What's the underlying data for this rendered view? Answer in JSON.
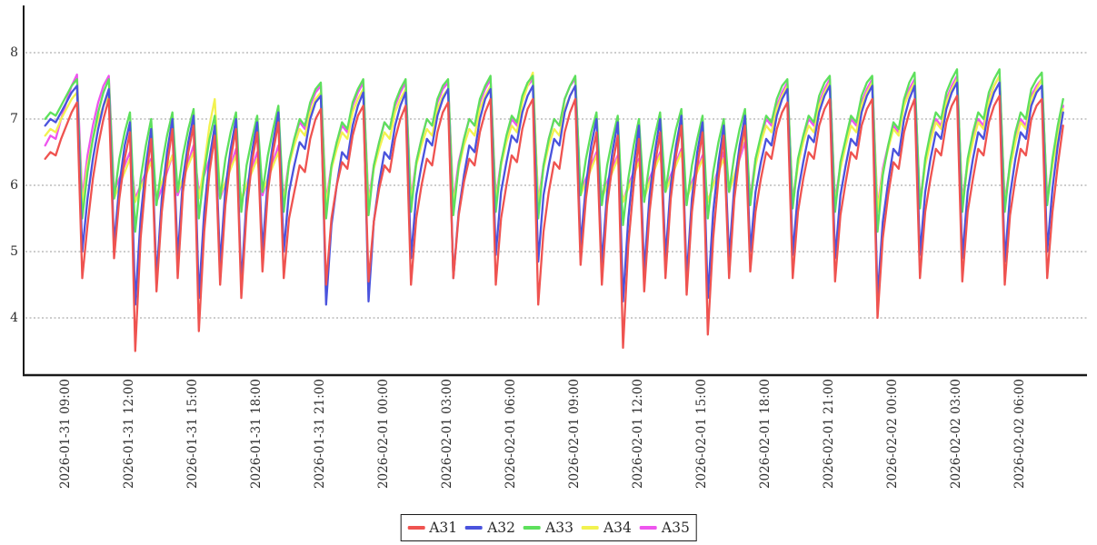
{
  "chart_data": {
    "type": "line",
    "title": "",
    "xlabel": "",
    "ylabel": "",
    "x_start": "2026-01-31 08:00",
    "step_minutes": 15,
    "x_tick_labels": [
      "2026-01-31 09:00",
      "2026-01-31 12:00",
      "2026-01-31 15:00",
      "2026-01-31 18:00",
      "2026-01-31 21:00",
      "2026-02-01 00:00",
      "2026-02-01 03:00",
      "2026-02-01 06:00",
      "2026-02-01 09:00",
      "2026-02-01 12:00",
      "2026-02-01 15:00",
      "2026-02-01 18:00",
      "2026-02-01 21:00",
      "2026-02-02 00:00",
      "2026-02-02 03:00",
      "2026-02-02 06:00"
    ],
    "y_ticks": [
      8,
      7,
      6,
      5,
      4
    ],
    "ylim": [
      3.2,
      8.7
    ],
    "grid": "horizontal-dashed",
    "grid_color": "#9a9a9a",
    "axis_color": "#1a1a1a",
    "legend_position": "bottom-center",
    "draw_order": [
      "A35",
      "A34",
      "A33",
      "A32",
      "A31"
    ],
    "series": [
      {
        "name": "A31",
        "color": "#ef5350",
        "values": [
          6.4,
          6.5,
          6.45,
          6.7,
          6.9,
          7.1,
          7.25,
          4.6,
          5.4,
          6.1,
          6.6,
          7.0,
          7.3,
          4.9,
          5.8,
          6.4,
          6.8,
          3.5,
          5.2,
          6.1,
          6.7,
          4.4,
          5.6,
          6.3,
          6.85,
          4.6,
          5.9,
          6.5,
          6.9,
          3.8,
          5.3,
          6.2,
          6.75,
          4.5,
          5.7,
          6.4,
          6.85,
          4.3,
          5.6,
          6.35,
          6.8,
          4.7,
          5.9,
          6.5,
          6.95,
          4.6,
          5.5,
          5.9,
          6.3,
          6.2,
          6.7,
          7.0,
          7.15,
          4.5,
          5.5,
          6.0,
          6.35,
          6.25,
          6.75,
          7.05,
          7.2,
          4.55,
          5.45,
          5.95,
          6.3,
          6.2,
          6.7,
          7.0,
          7.2,
          4.5,
          5.5,
          6.0,
          6.4,
          6.3,
          6.8,
          7.1,
          7.25,
          4.6,
          5.55,
          6.05,
          6.4,
          6.3,
          6.8,
          7.1,
          7.3,
          4.5,
          5.5,
          6.0,
          6.45,
          6.35,
          6.85,
          7.15,
          7.3,
          4.2,
          5.3,
          5.9,
          6.35,
          6.25,
          6.8,
          7.1,
          7.3,
          4.8,
          5.8,
          6.4,
          6.8,
          4.5,
          5.7,
          6.3,
          6.75,
          3.55,
          5.1,
          6.0,
          6.7,
          4.4,
          5.6,
          6.3,
          6.8,
          4.6,
          5.8,
          6.45,
          6.9,
          4.35,
          5.6,
          6.3,
          6.8,
          3.75,
          5.2,
          6.1,
          6.75,
          4.6,
          5.8,
          6.45,
          6.9,
          4.7,
          5.6,
          6.1,
          6.5,
          6.4,
          6.85,
          7.1,
          7.25,
          4.6,
          5.6,
          6.1,
          6.5,
          6.4,
          6.9,
          7.15,
          7.3,
          4.55,
          5.55,
          6.05,
          6.5,
          6.4,
          6.9,
          7.15,
          7.3,
          4.0,
          5.2,
          5.85,
          6.35,
          6.25,
          6.8,
          7.1,
          7.3,
          4.6,
          5.6,
          6.1,
          6.55,
          6.45,
          6.95,
          7.2,
          7.35,
          4.55,
          5.6,
          6.1,
          6.55,
          6.45,
          6.95,
          7.2,
          7.35,
          4.5,
          5.55,
          6.1,
          6.55,
          6.45,
          7.0,
          7.2,
          7.3,
          4.6,
          5.6,
          6.3,
          6.9
        ]
      },
      {
        "name": "A32",
        "color": "#4a53dd",
        "values": [
          6.9,
          7.0,
          6.95,
          7.1,
          7.25,
          7.4,
          7.5,
          5.0,
          5.8,
          6.4,
          6.85,
          7.2,
          7.45,
          5.1,
          6.0,
          6.6,
          6.95,
          4.2,
          5.5,
          6.3,
          6.85,
          4.6,
          5.8,
          6.5,
          7.0,
          4.9,
          6.1,
          6.65,
          7.05,
          4.3,
          5.6,
          6.4,
          6.9,
          4.8,
          5.95,
          6.55,
          7.0,
          4.5,
          5.8,
          6.5,
          6.95,
          5.0,
          6.1,
          6.65,
          7.1,
          5.0,
          5.9,
          6.3,
          6.65,
          6.55,
          7.0,
          7.25,
          7.35,
          4.2,
          5.4,
          6.0,
          6.5,
          6.4,
          6.9,
          7.2,
          7.4,
          4.25,
          5.45,
          6.05,
          6.5,
          6.4,
          6.9,
          7.2,
          7.4,
          4.9,
          5.85,
          6.3,
          6.7,
          6.6,
          7.05,
          7.3,
          7.45,
          4.6,
          5.6,
          6.15,
          6.6,
          6.5,
          7.0,
          7.3,
          7.45,
          4.95,
          5.9,
          6.35,
          6.75,
          6.65,
          7.1,
          7.35,
          7.5,
          4.85,
          5.85,
          6.3,
          6.7,
          6.6,
          7.1,
          7.35,
          7.5,
          5.1,
          6.0,
          6.6,
          7.0,
          4.8,
          5.9,
          6.5,
          6.95,
          4.25,
          5.5,
          6.3,
          6.9,
          4.7,
          5.85,
          6.5,
          7.0,
          4.9,
          6.0,
          6.6,
          7.05,
          4.6,
          5.8,
          6.5,
          6.95,
          4.3,
          5.6,
          6.35,
          6.9,
          4.9,
          6.0,
          6.6,
          7.05,
          5.0,
          5.9,
          6.35,
          6.7,
          6.6,
          7.05,
          7.3,
          7.45,
          4.95,
          5.9,
          6.35,
          6.75,
          6.65,
          7.1,
          7.35,
          7.5,
          4.9,
          5.85,
          6.3,
          6.7,
          6.6,
          7.1,
          7.35,
          7.5,
          4.3,
          5.45,
          6.05,
          6.55,
          6.45,
          7.0,
          7.3,
          7.5,
          4.95,
          5.9,
          6.4,
          6.8,
          6.7,
          7.15,
          7.4,
          7.55,
          4.9,
          5.9,
          6.4,
          6.8,
          6.7,
          7.15,
          7.4,
          7.55,
          4.85,
          5.85,
          6.4,
          6.8,
          6.7,
          7.2,
          7.4,
          7.5,
          5.0,
          5.95,
          6.6,
          7.1
        ]
      },
      {
        "name": "A33",
        "color": "#5de05c",
        "values": [
          7.0,
          7.1,
          7.05,
          7.2,
          7.35,
          7.5,
          7.6,
          5.5,
          6.2,
          6.7,
          7.1,
          7.4,
          7.6,
          5.8,
          6.4,
          6.8,
          7.1,
          5.3,
          6.1,
          6.6,
          7.0,
          5.7,
          6.3,
          6.75,
          7.1,
          5.9,
          6.45,
          6.85,
          7.15,
          5.5,
          6.2,
          6.7,
          7.05,
          5.8,
          6.4,
          6.8,
          7.1,
          5.6,
          6.3,
          6.7,
          7.05,
          5.9,
          6.45,
          6.85,
          7.2,
          5.6,
          6.35,
          6.7,
          7.0,
          6.9,
          7.25,
          7.45,
          7.55,
          5.5,
          6.3,
          6.65,
          6.95,
          6.85,
          7.25,
          7.45,
          7.6,
          5.55,
          6.3,
          6.65,
          6.95,
          6.85,
          7.25,
          7.45,
          7.6,
          5.6,
          6.35,
          6.7,
          7.0,
          6.9,
          7.3,
          7.5,
          7.6,
          5.55,
          6.3,
          6.7,
          7.0,
          6.9,
          7.3,
          7.5,
          7.65,
          5.6,
          6.35,
          6.75,
          7.05,
          6.95,
          7.35,
          7.55,
          7.65,
          5.5,
          6.3,
          6.7,
          7.0,
          6.9,
          7.3,
          7.5,
          7.65,
          5.85,
          6.4,
          6.8,
          7.1,
          5.7,
          6.3,
          6.7,
          7.05,
          5.4,
          6.1,
          6.6,
          7.0,
          5.75,
          6.35,
          6.75,
          7.1,
          5.9,
          6.45,
          6.85,
          7.15,
          5.7,
          6.3,
          6.7,
          7.05,
          5.5,
          6.2,
          6.65,
          7.0,
          5.9,
          6.45,
          6.85,
          7.15,
          5.7,
          6.4,
          6.75,
          7.05,
          6.95,
          7.3,
          7.5,
          7.6,
          5.65,
          6.4,
          6.75,
          7.05,
          6.95,
          7.35,
          7.55,
          7.65,
          5.6,
          6.35,
          6.7,
          7.05,
          6.95,
          7.35,
          7.55,
          7.65,
          5.3,
          6.15,
          6.6,
          6.95,
          6.85,
          7.3,
          7.55,
          7.7,
          5.65,
          6.4,
          6.8,
          7.1,
          7.0,
          7.4,
          7.6,
          7.75,
          5.6,
          6.4,
          6.8,
          7.1,
          7.0,
          7.4,
          7.6,
          7.75,
          5.6,
          6.35,
          6.8,
          7.1,
          7.0,
          7.45,
          7.6,
          7.7,
          5.7,
          6.4,
          6.9,
          7.3
        ]
      },
      {
        "name": "A34",
        "color": "#f2f24f",
        "values": [
          6.75,
          6.85,
          6.8,
          7.0,
          7.15,
          7.3,
          7.4,
          5.7,
          6.3,
          6.7,
          7.0,
          7.2,
          7.35,
          5.8,
          6.0,
          6.2,
          6.4,
          5.75,
          5.95,
          6.15,
          6.35,
          5.85,
          6.05,
          6.25,
          6.45,
          5.9,
          6.1,
          6.3,
          6.5,
          5.8,
          6.3,
          6.9,
          7.3,
          5.85,
          6.05,
          6.25,
          6.45,
          5.8,
          6.0,
          6.2,
          6.4,
          5.9,
          6.1,
          6.3,
          6.5,
          5.75,
          6.3,
          6.6,
          6.85,
          6.75,
          7.1,
          7.3,
          7.4,
          5.7,
          6.25,
          6.55,
          6.8,
          6.7,
          7.1,
          7.3,
          7.45,
          5.7,
          6.25,
          6.55,
          6.8,
          6.7,
          7.1,
          7.3,
          7.45,
          5.75,
          6.3,
          6.6,
          6.85,
          6.75,
          7.15,
          7.35,
          7.45,
          5.7,
          6.25,
          6.6,
          6.85,
          6.75,
          7.15,
          7.35,
          7.5,
          5.75,
          6.3,
          6.65,
          6.9,
          6.8,
          7.25,
          7.5,
          7.7,
          5.7,
          6.25,
          6.6,
          6.85,
          6.75,
          7.15,
          7.35,
          7.5,
          5.85,
          6.05,
          6.25,
          6.45,
          5.8,
          6.0,
          6.2,
          6.4,
          5.75,
          5.95,
          6.15,
          6.35,
          5.8,
          6.05,
          6.25,
          6.45,
          5.9,
          6.1,
          6.3,
          6.5,
          5.8,
          6.0,
          6.2,
          6.4,
          5.75,
          6.0,
          6.2,
          6.4,
          5.9,
          6.15,
          6.45,
          6.8,
          5.75,
          6.3,
          6.65,
          6.9,
          6.8,
          7.15,
          7.35,
          7.5,
          5.7,
          6.3,
          6.65,
          6.9,
          6.8,
          7.2,
          7.4,
          7.55,
          5.7,
          6.25,
          6.6,
          6.9,
          6.8,
          7.2,
          7.4,
          7.55,
          5.6,
          6.2,
          6.55,
          6.85,
          6.75,
          7.2,
          7.4,
          7.55,
          5.7,
          6.3,
          6.65,
          6.95,
          6.85,
          7.25,
          7.45,
          7.6,
          5.7,
          6.3,
          6.65,
          6.95,
          6.85,
          7.25,
          7.5,
          7.65,
          5.7,
          6.25,
          6.65,
          6.95,
          6.85,
          7.3,
          7.45,
          7.6,
          5.75,
          6.3,
          6.75,
          7.15
        ]
      },
      {
        "name": "A35",
        "color": "#ee55ee",
        "values": [
          6.6,
          6.75,
          6.7,
          7.0,
          7.25,
          7.5,
          7.67,
          5.8,
          6.45,
          6.9,
          7.25,
          7.5,
          7.65,
          5.9,
          6.1,
          6.3,
          6.5,
          5.8,
          6.0,
          6.2,
          6.4,
          5.75,
          5.95,
          6.2,
          6.45,
          5.85,
          6.1,
          6.35,
          6.6,
          5.9,
          6.15,
          6.4,
          6.65,
          5.8,
          6.05,
          6.3,
          6.55,
          5.75,
          6.0,
          6.25,
          6.5,
          5.85,
          6.1,
          6.35,
          6.6,
          5.8,
          6.35,
          6.7,
          6.95,
          6.85,
          7.2,
          7.4,
          7.5,
          5.75,
          6.3,
          6.65,
          6.9,
          6.8,
          7.2,
          7.4,
          7.55,
          5.75,
          6.3,
          6.65,
          6.95,
          6.85,
          7.2,
          7.4,
          7.55,
          5.8,
          6.35,
          6.7,
          7.0,
          6.9,
          7.25,
          7.45,
          7.55,
          5.75,
          6.35,
          6.7,
          7.0,
          6.9,
          7.25,
          7.45,
          7.6,
          5.8,
          6.35,
          6.7,
          7.0,
          6.9,
          7.3,
          7.5,
          7.6,
          5.75,
          6.3,
          6.7,
          7.0,
          6.9,
          7.3,
          7.5,
          7.6,
          5.9,
          6.1,
          6.3,
          6.5,
          5.85,
          6.05,
          6.25,
          6.45,
          5.75,
          6.0,
          6.2,
          6.4,
          5.85,
          6.1,
          6.3,
          6.5,
          5.9,
          6.15,
          6.35,
          6.55,
          5.8,
          6.05,
          6.25,
          6.45,
          5.75,
          6.0,
          6.25,
          6.5,
          5.9,
          6.15,
          6.4,
          6.65,
          5.8,
          6.4,
          6.7,
          7.0,
          6.9,
          7.2,
          7.4,
          7.55,
          5.75,
          6.35,
          6.7,
          7.0,
          6.9,
          7.25,
          7.45,
          7.6,
          5.75,
          6.3,
          6.65,
          7.0,
          6.9,
          7.25,
          7.45,
          7.6,
          5.65,
          6.25,
          6.6,
          6.9,
          6.8,
          7.25,
          7.45,
          7.6,
          5.75,
          6.35,
          6.7,
          7.0,
          6.9,
          7.3,
          7.5,
          7.65,
          5.75,
          6.35,
          6.7,
          7.0,
          6.9,
          7.3,
          7.5,
          7.65,
          5.75,
          6.3,
          6.7,
          7.0,
          6.9,
          7.35,
          7.5,
          7.6,
          5.8,
          6.35,
          6.8,
          7.2
        ]
      }
    ],
    "legend_labels": [
      "A31",
      "A32",
      "A33",
      "A34",
      "A35"
    ]
  }
}
